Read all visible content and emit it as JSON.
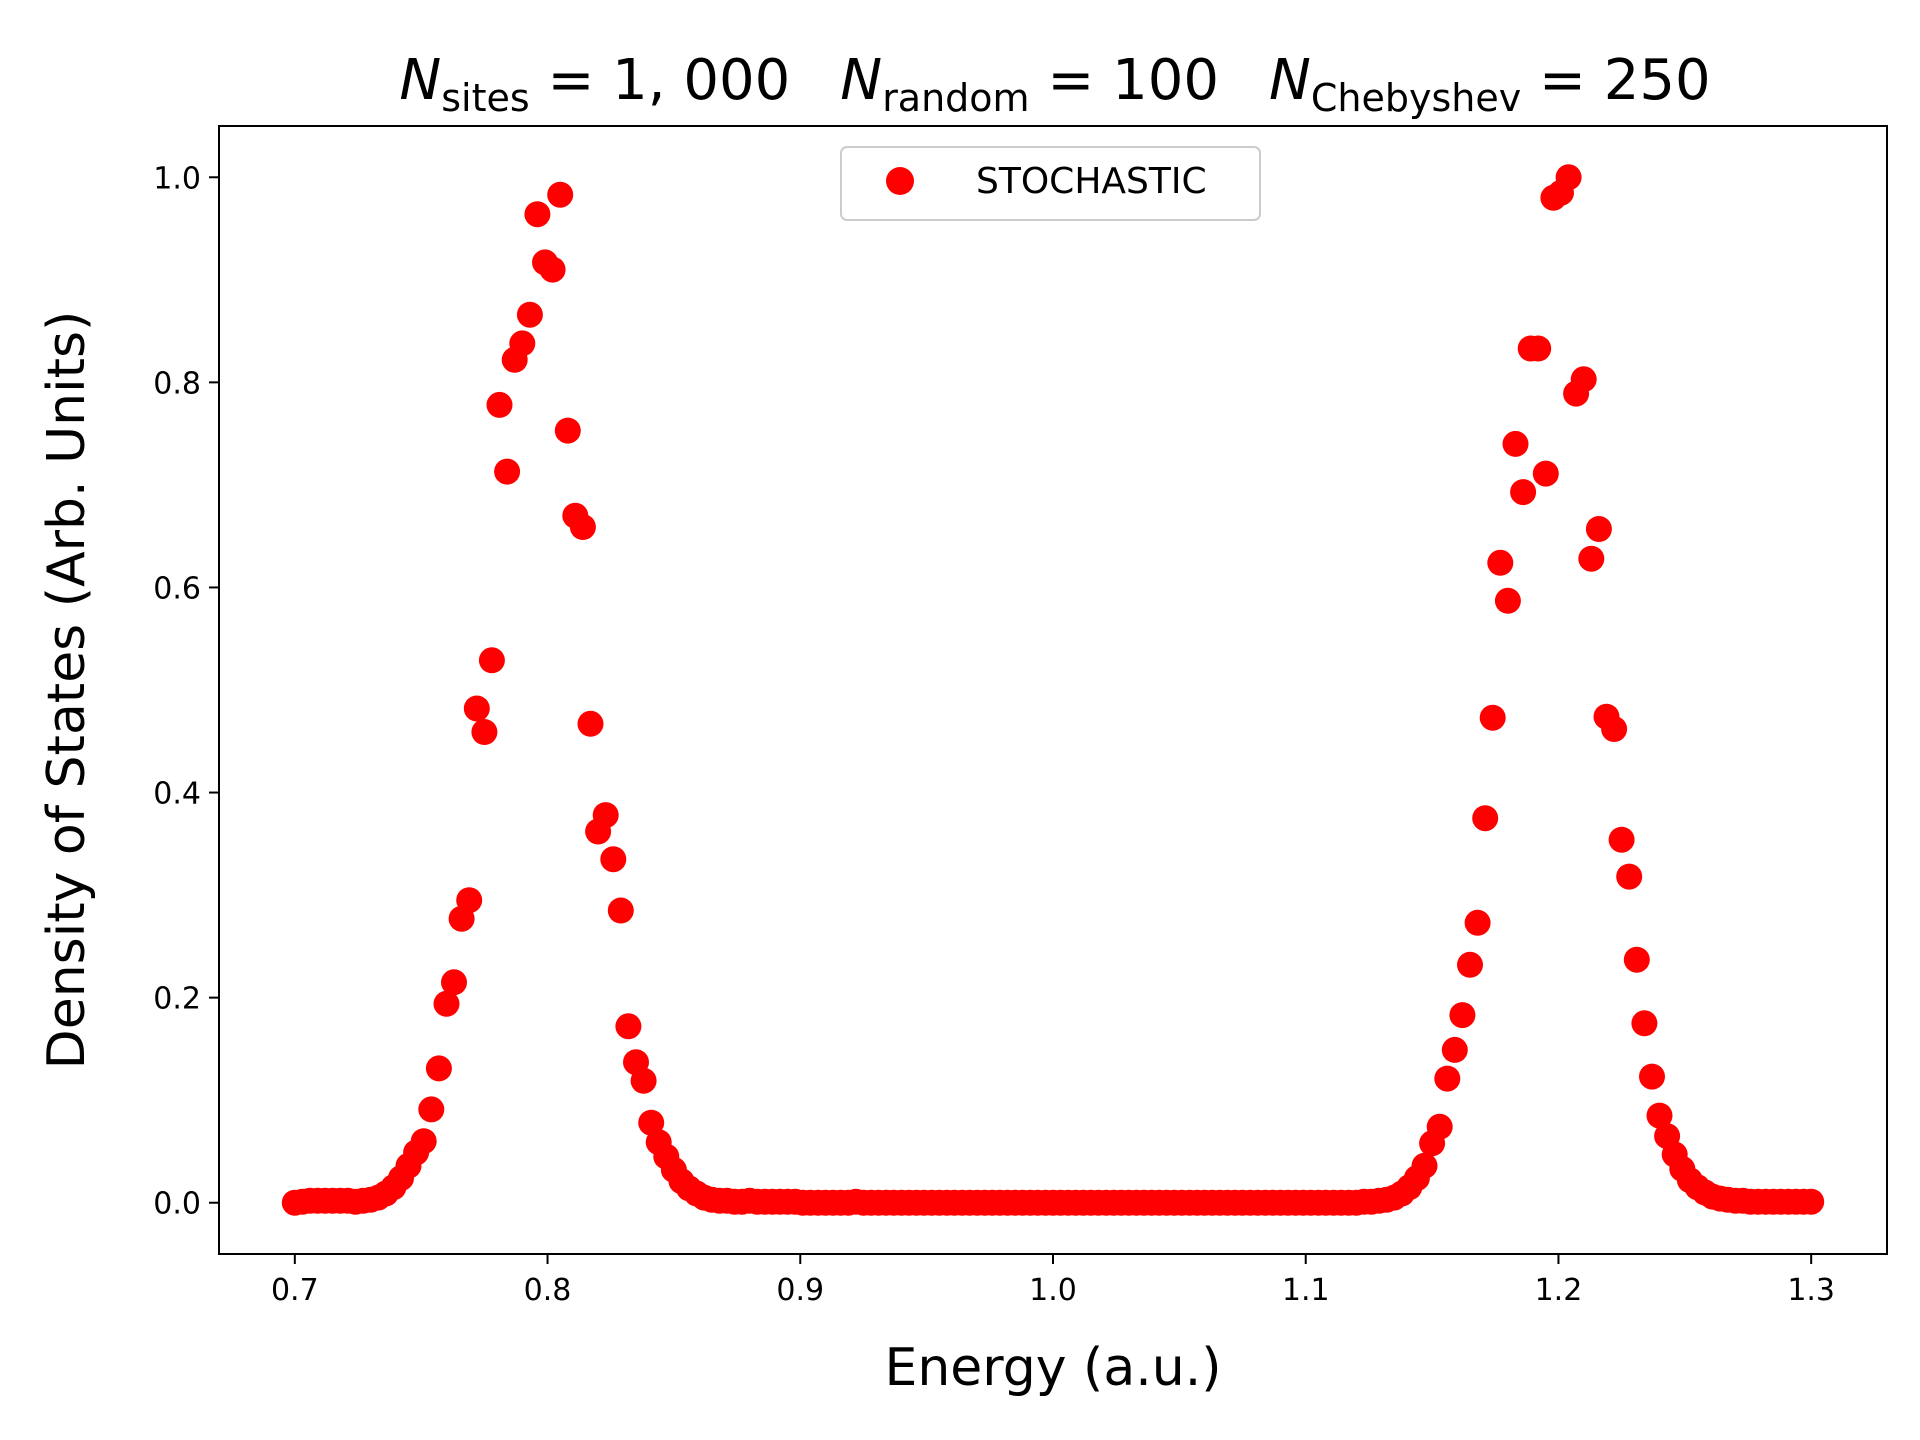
{
  "chart_data": {
    "type": "scatter",
    "title": {
      "parts": [
        {
          "var": "N",
          "sub": "sites",
          "value": "1, 000"
        },
        {
          "var": "N",
          "sub": "random",
          "value": "100"
        },
        {
          "var": "N",
          "sub": "Chebyshev",
          "value": "250"
        }
      ]
    },
    "xlabel": "Energy (a.u.)",
    "ylabel": "Density of States (Arb. Units)",
    "xlim": [
      0.67,
      1.33
    ],
    "ylim": [
      -0.05,
      1.05
    ],
    "xticks": [
      0.7,
      0.8,
      0.9,
      1.0,
      1.1,
      1.2,
      1.3
    ],
    "xtick_labels": [
      "0.7",
      "0.8",
      "0.9",
      "1.0",
      "1.1",
      "1.2",
      "1.3"
    ],
    "yticks": [
      0.0,
      0.2,
      0.4,
      0.6,
      0.8,
      1.0
    ],
    "ytick_labels": [
      "0.0",
      "0.2",
      "0.4",
      "0.6",
      "0.8",
      "1.0"
    ],
    "grid": false,
    "legend": {
      "position": "top-center",
      "entries": [
        "STOCHASTIC"
      ]
    },
    "colors": {
      "marker": "#ff0000"
    },
    "series": [
      {
        "name": "STOCHASTIC",
        "x": [
          0.7,
          0.703,
          0.706,
          0.709,
          0.712,
          0.715,
          0.718,
          0.721,
          0.724,
          0.727,
          0.73,
          0.733,
          0.736,
          0.739,
          0.742,
          0.745,
          0.748,
          0.751,
          0.754,
          0.757,
          0.76,
          0.763,
          0.766,
          0.769,
          0.772,
          0.775,
          0.778,
          0.781,
          0.784,
          0.787,
          0.79,
          0.793,
          0.796,
          0.799,
          0.802,
          0.805,
          0.808,
          0.811,
          0.814,
          0.817,
          0.82,
          0.823,
          0.826,
          0.829,
          0.832,
          0.835,
          0.838,
          0.841,
          0.844,
          0.847,
          0.85,
          0.853,
          0.856,
          0.859,
          0.862,
          0.865,
          0.868,
          0.871,
          0.874,
          0.877,
          0.88,
          0.883,
          0.886,
          0.889,
          0.892,
          0.895,
          0.898,
          0.901,
          0.904,
          0.907,
          0.91,
          0.913,
          0.916,
          0.919,
          0.922,
          0.925,
          0.928,
          0.931,
          0.934,
          0.937,
          0.94,
          0.943,
          0.946,
          0.949,
          0.952,
          0.955,
          0.958,
          0.961,
          0.964,
          0.967,
          0.97,
          0.973,
          0.976,
          0.979,
          0.982,
          0.985,
          0.988,
          0.991,
          0.994,
          0.997,
          1.0,
          1.003,
          1.006,
          1.009,
          1.012,
          1.015,
          1.018,
          1.021,
          1.024,
          1.027,
          1.03,
          1.033,
          1.036,
          1.039,
          1.042,
          1.045,
          1.048,
          1.051,
          1.054,
          1.057,
          1.06,
          1.063,
          1.066,
          1.069,
          1.072,
          1.075,
          1.078,
          1.081,
          1.084,
          1.087,
          1.09,
          1.093,
          1.096,
          1.099,
          1.102,
          1.105,
          1.108,
          1.111,
          1.114,
          1.117,
          1.12,
          1.123,
          1.126,
          1.129,
          1.132,
          1.135,
          1.138,
          1.141,
          1.144,
          1.147,
          1.15,
          1.153,
          1.156,
          1.159,
          1.162,
          1.165,
          1.168,
          1.171,
          1.174,
          1.177,
          1.18,
          1.183,
          1.186,
          1.189,
          1.192,
          1.195,
          1.198,
          1.201,
          1.204,
          1.207,
          1.21,
          1.213,
          1.216,
          1.219,
          1.222,
          1.225,
          1.228,
          1.231,
          1.234,
          1.237,
          1.24,
          1.243,
          1.246,
          1.249,
          1.252,
          1.255,
          1.258,
          1.261,
          1.264,
          1.267,
          1.27,
          1.273,
          1.276,
          1.279,
          1.282,
          1.285,
          1.288,
          1.291,
          1.294,
          1.297,
          1.3
        ],
        "y": [
          0.0,
          0.001,
          0.002,
          0.002,
          0.002,
          0.002,
          0.002,
          0.002,
          0.001,
          0.002,
          0.003,
          0.005,
          0.009,
          0.015,
          0.024,
          0.036,
          0.049,
          0.06,
          0.091,
          0.131,
          0.194,
          0.215,
          0.277,
          0.295,
          0.482,
          0.459,
          0.529,
          0.778,
          0.713,
          0.822,
          0.838,
          0.866,
          0.964,
          0.917,
          0.91,
          0.983,
          0.753,
          0.67,
          0.659,
          0.467,
          0.362,
          0.378,
          0.335,
          0.285,
          0.172,
          0.137,
          0.119,
          0.078,
          0.059,
          0.045,
          0.032,
          0.021,
          0.014,
          0.009,
          0.005,
          0.003,
          0.002,
          0.002,
          0.001,
          0.001,
          0.002,
          0.001,
          0.001,
          0.001,
          0.001,
          0.001,
          0.001,
          0.0,
          0.0,
          0.0,
          0.0,
          0.0,
          0.0,
          0.0,
          0.001,
          0.0,
          0.0,
          0.0,
          0.0,
          0.0,
          0.0,
          0.0,
          0.0,
          0.0,
          0.0,
          0.0,
          0.0,
          0.0,
          0.0,
          0.0,
          0.0,
          0.0,
          0.0,
          0.0,
          0.0,
          0.0,
          0.0,
          0.0,
          0.0,
          0.0,
          0.0,
          0.0,
          0.0,
          0.0,
          0.0,
          0.0,
          0.0,
          0.0,
          0.0,
          0.0,
          0.0,
          0.0,
          0.0,
          0.0,
          0.0,
          0.0,
          0.0,
          0.0,
          0.0,
          0.0,
          0.0,
          0.0,
          0.0,
          0.0,
          0.0,
          0.0,
          0.0,
          0.0,
          0.0,
          0.0,
          0.0,
          0.0,
          0.0,
          0.0,
          0.0,
          0.0,
          0.0,
          0.0,
          0.0,
          0.0,
          0.0,
          0.001,
          0.001,
          0.002,
          0.003,
          0.005,
          0.009,
          0.015,
          0.024,
          0.036,
          0.058,
          0.074,
          0.121,
          0.149,
          0.183,
          0.232,
          0.273,
          0.375,
          0.473,
          0.624,
          0.587,
          0.74,
          0.693,
          0.833,
          0.833,
          0.711,
          0.98,
          0.985,
          1.0,
          0.789,
          0.803,
          0.628,
          0.657,
          0.474,
          0.462,
          0.354,
          0.318,
          0.237,
          0.175,
          0.123,
          0.085,
          0.065,
          0.047,
          0.033,
          0.022,
          0.015,
          0.01,
          0.006,
          0.004,
          0.003,
          0.002,
          0.002,
          0.001,
          0.001,
          0.001,
          0.001,
          0.001,
          0.001,
          0.001,
          0.001,
          0.001
        ]
      }
    ]
  }
}
